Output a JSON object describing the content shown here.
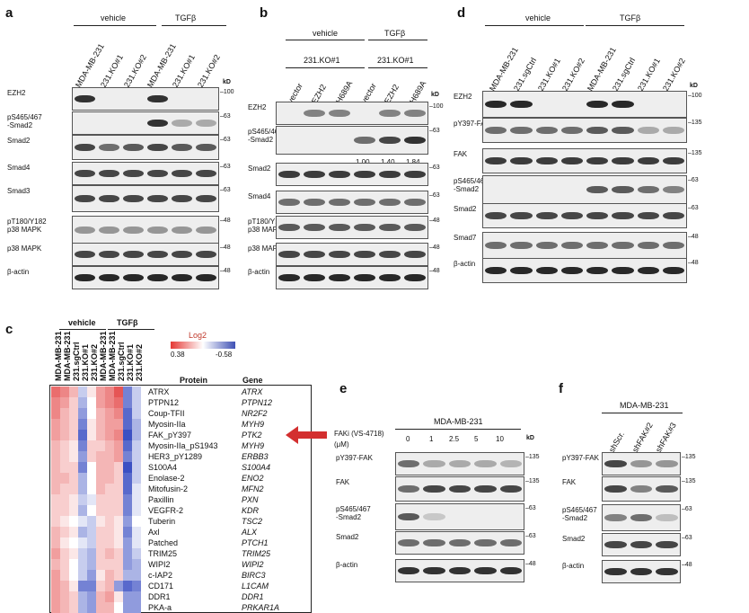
{
  "panels": {
    "a": {
      "label": "a",
      "groups": [
        "vehicle",
        "TGFβ"
      ],
      "lanes": [
        "MDA-MB-231",
        "231.KO#1",
        "231.KO#2",
        "MDA-MB-231",
        "231.KO#1",
        "231.KO#2"
      ],
      "kd_header": "kD",
      "rows": [
        {
          "label": "EZH2",
          "kd": "100"
        },
        {
          "label": "pS465/467\n-Smad2",
          "kd": "63"
        },
        {
          "label": "Smad2",
          "kd": "63"
        },
        {
          "label": "Smad4",
          "kd": "63"
        },
        {
          "label": "Smad3",
          "kd": "63"
        },
        {
          "label": "pT180/Y182\np38 MAPK",
          "kd": "48"
        },
        {
          "label": "p38 MAPK",
          "kd": "48"
        },
        {
          "label": "β-actin",
          "kd": "48"
        }
      ]
    },
    "b": {
      "label": "b",
      "groups": [
        "vehicle",
        "TGFβ"
      ],
      "subgroups": [
        "231.KO#1",
        "231.KO#1"
      ],
      "lanes": [
        "vector",
        "EZH2",
        "H689A",
        "vector",
        "EZH2",
        "H689A"
      ],
      "kd_header": "kD",
      "quant": [
        "1.00",
        "1.40",
        "1.84"
      ],
      "rows": [
        {
          "label": "EZH2",
          "kd": "100"
        },
        {
          "label": "pS465/467\n-Smad2",
          "kd": "63"
        },
        {
          "label": "Smad2",
          "kd": "63"
        },
        {
          "label": "Smad4",
          "kd": "63"
        },
        {
          "label": "pT180/Y182\np38 MAPK",
          "kd": "48"
        },
        {
          "label": "p38 MAPK",
          "kd": "48"
        },
        {
          "label": "β-actin",
          "kd": "48"
        }
      ]
    },
    "d": {
      "label": "d",
      "groups": [
        "vehicle",
        "TGFβ"
      ],
      "lanes": [
        "MDA-MB-231",
        "231.sgCtrl",
        "231.KO#1",
        "231.KO#2",
        "MDA-MB-231",
        "231.sgCtrl",
        "231.KO#1",
        "231.KO#2"
      ],
      "kd_header": "kD",
      "rows": [
        {
          "label": "EZH2",
          "kd": "100"
        },
        {
          "label": "pY397-FAK",
          "kd": "135"
        },
        {
          "label": "FAK",
          "kd": "135"
        },
        {
          "label": "pS465/467\n-Smad2",
          "kd": "63"
        },
        {
          "label": "Smad2",
          "kd": "63"
        },
        {
          "label": "Smad7",
          "kd": "48"
        },
        {
          "label": "β-actin",
          "kd": "48"
        }
      ]
    },
    "c": {
      "label": "c",
      "groups": [
        "vehicle",
        "TGFβ"
      ],
      "legend_title": "Log2",
      "legend_min": "0.38",
      "legend_max": "-0.58",
      "columns": [
        "MDA-MB-231",
        "MDA-MB-231",
        "231.sgCtrl",
        "231.KO#1",
        "231.KO#2",
        "MDA-MB-231",
        "MDA-MB-231",
        "231.sgCtrl",
        "231.KO#1",
        "231.KO#2"
      ],
      "protein_header": "Protein",
      "gene_header": "Gene",
      "rows": [
        {
          "protein": "ATRX",
          "gene": "ATRX"
        },
        {
          "protein": "PTPN12",
          "gene": "PTPN12"
        },
        {
          "protein": "Coup-TFII",
          "gene": "NR2F2"
        },
        {
          "protein": "Myosin-IIa",
          "gene": "MYH9"
        },
        {
          "protein": "FAK_pY397",
          "gene": "PTK2"
        },
        {
          "protein": "Myosin-IIa_pS1943",
          "gene": "MYH9"
        },
        {
          "protein": "HER3_pY1289",
          "gene": "ERBB3"
        },
        {
          "protein": "S100A4",
          "gene": "S100A4"
        },
        {
          "protein": "Enolase-2",
          "gene": "ENO2"
        },
        {
          "protein": "Mitofusin-2",
          "gene": "MFN2"
        },
        {
          "protein": "Paxillin",
          "gene": "PXN"
        },
        {
          "protein": "VEGFR-2",
          "gene": "KDR"
        },
        {
          "protein": "Tuberin",
          "gene": "TSC2"
        },
        {
          "protein": "Axl",
          "gene": "ALX"
        },
        {
          "protein": "Patched",
          "gene": "PTCH1"
        },
        {
          "protein": "TRIM25",
          "gene": "TRIM25"
        },
        {
          "protein": "WIPI2",
          "gene": "WIPI2"
        },
        {
          "protein": "c-IAP2",
          "gene": "BIRC3"
        },
        {
          "protein": "CD171",
          "gene": "L1CAM"
        },
        {
          "protein": "DDR1",
          "gene": "DDR1"
        },
        {
          "protein": "PKA-a",
          "gene": "PRKAR1A"
        }
      ]
    },
    "e": {
      "label": "e",
      "title": "MDA-MB-231",
      "treatment": "FAKi (VS-4718)",
      "unit": "(μM)",
      "doses": [
        "0",
        "1",
        "2.5",
        "5",
        "10"
      ],
      "kd_header": "kD",
      "rows": [
        {
          "label": "pY397-FAK",
          "kd": "135"
        },
        {
          "label": "FAK",
          "kd": "135"
        },
        {
          "label": "pS465/467\n-Smad2",
          "kd": "63"
        },
        {
          "label": "Smad2",
          "kd": "63"
        },
        {
          "label": "β-actin",
          "kd": "48"
        }
      ]
    },
    "f": {
      "label": "f",
      "title": "MDA-MB-231",
      "lanes": [
        "shScr.",
        "shFAK#2",
        "shFAK#3"
      ],
      "rows": [
        {
          "label": "pY397-FAK",
          "kd": "135"
        },
        {
          "label": "FAK",
          "kd": "135"
        },
        {
          "label": "pS465/467\n-Smad2",
          "kd": "63"
        },
        {
          "label": "Smad2",
          "kd": "63"
        },
        {
          "label": "β-actin",
          "kd": "48"
        }
      ]
    }
  }
}
